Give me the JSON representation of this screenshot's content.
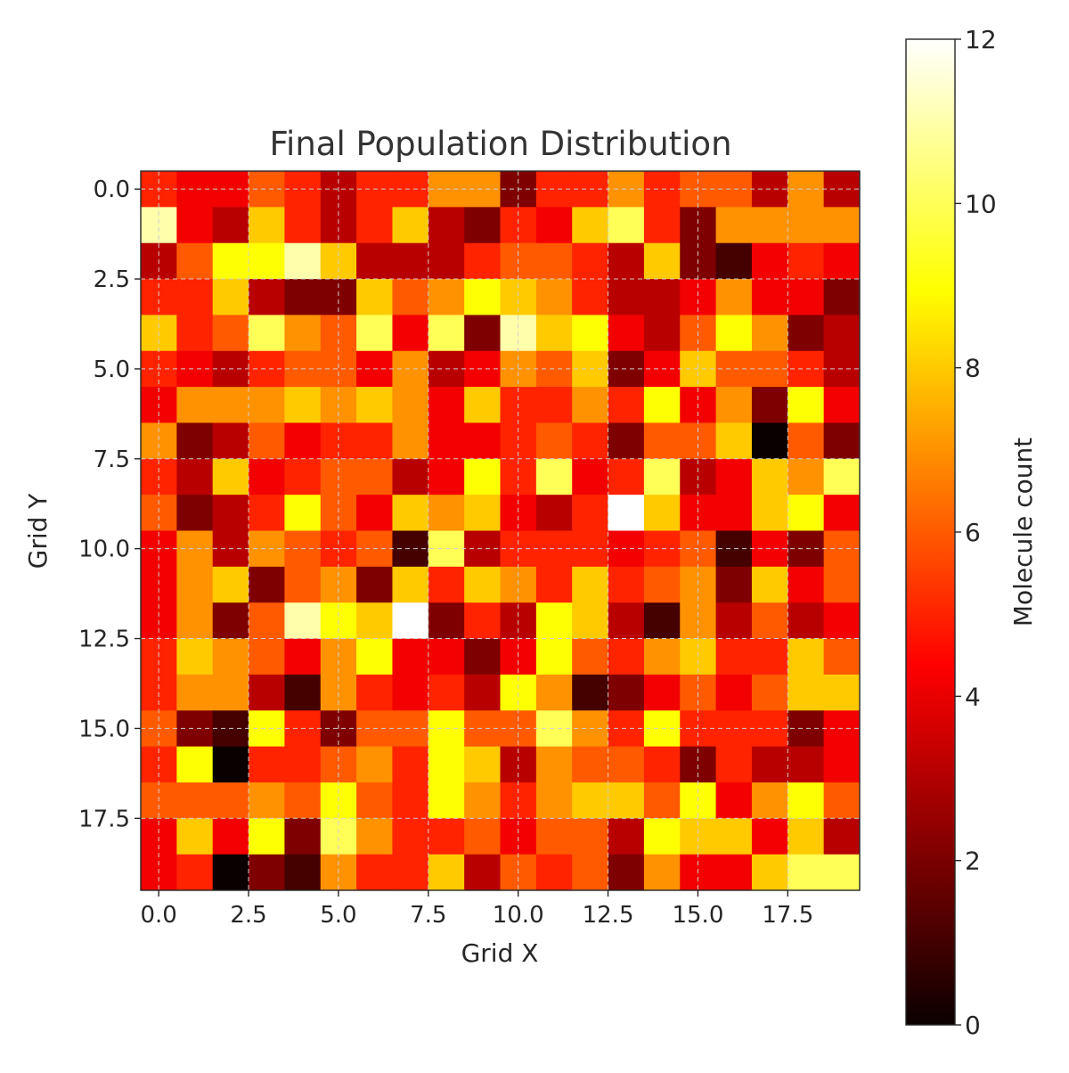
{
  "chart_data": {
    "type": "heatmap",
    "title": "Final Population Distribution",
    "xlabel": "Grid X",
    "ylabel": "Grid Y",
    "colormap": "hot",
    "colorbar_label": "Molecule count",
    "vmin": 0,
    "vmax": 12,
    "xlim": [
      -0.5,
      19.5
    ],
    "ylim": [
      19.5,
      -0.5
    ],
    "grid": true,
    "x_ticks": [
      "0.0",
      "2.5",
      "5.0",
      "7.5",
      "10.0",
      "12.5",
      "15.0",
      "17.5"
    ],
    "y_ticks": [
      "0.0",
      "2.5",
      "5.0",
      "7.5",
      "10.0",
      "12.5",
      "15.0",
      "17.5"
    ],
    "colorbar_ticks": [
      "0",
      "2",
      "4",
      "6",
      "8",
      "10",
      "12"
    ],
    "values": [
      [
        5,
        4,
        4,
        6,
        5,
        3,
        5,
        5,
        7,
        7,
        2,
        5,
        5,
        7,
        5,
        6,
        6,
        3,
        7,
        3
      ],
      [
        11,
        4,
        3,
        8,
        5,
        3,
        5,
        8,
        3,
        2,
        5,
        4,
        8,
        10,
        5,
        2,
        7,
        7,
        7,
        7
      ],
      [
        3,
        6,
        9,
        9,
        11,
        8,
        3,
        3,
        3,
        5,
        6,
        6,
        5,
        3,
        8,
        2,
        1,
        4,
        5,
        4
      ],
      [
        5,
        5,
        8,
        3,
        2,
        2,
        8,
        6,
        7,
        9,
        8,
        7,
        5,
        3,
        3,
        4,
        7,
        4,
        4,
        2
      ],
      [
        8,
        5,
        6,
        10,
        7,
        6,
        10,
        4,
        10,
        2,
        11,
        8,
        9,
        4,
        3,
        6,
        9,
        7,
        2,
        3
      ],
      [
        5,
        4,
        3,
        5,
        6,
        6,
        4,
        7,
        3,
        4,
        7,
        6,
        8,
        2,
        4,
        8,
        6,
        6,
        5,
        3
      ],
      [
        4,
        7,
        7,
        7,
        8,
        7,
        8,
        7,
        4,
        8,
        5,
        5,
        7,
        5,
        9,
        4,
        7,
        2,
        9,
        4
      ],
      [
        7,
        2,
        3,
        6,
        4,
        5,
        5,
        7,
        4,
        4,
        5,
        6,
        5,
        2,
        6,
        6,
        8,
        0,
        6,
        2
      ],
      [
        5,
        3,
        8,
        4,
        5,
        6,
        6,
        3,
        4,
        9,
        5,
        10,
        4,
        5,
        10,
        3,
        4,
        8,
        7,
        10
      ],
      [
        6,
        2,
        3,
        5,
        9,
        6,
        4,
        8,
        7,
        8,
        4,
        3,
        5,
        12,
        8,
        4,
        4,
        8,
        9,
        4
      ],
      [
        4,
        7,
        3,
        7,
        6,
        5,
        6,
        1,
        10,
        3,
        5,
        5,
        5,
        4,
        5,
        6,
        1,
        4,
        2,
        6
      ],
      [
        4,
        7,
        8,
        2,
        6,
        7,
        2,
        8,
        5,
        8,
        7,
        5,
        8,
        5,
        6,
        7,
        2,
        8,
        4,
        6
      ],
      [
        4,
        7,
        2,
        6,
        11,
        9,
        8,
        12,
        2,
        5,
        3,
        9,
        8,
        3,
        1,
        7,
        3,
        6,
        3,
        4
      ],
      [
        5,
        8,
        7,
        6,
        4,
        7,
        9,
        4,
        4,
        2,
        4,
        9,
        6,
        5,
        7,
        8,
        5,
        5,
        8,
        6
      ],
      [
        5,
        7,
        7,
        3,
        1,
        7,
        5,
        4,
        5,
        3,
        9,
        7,
        1,
        2,
        4,
        6,
        4,
        6,
        8,
        8
      ],
      [
        6,
        2,
        1,
        9,
        5,
        2,
        6,
        6,
        9,
        6,
        6,
        10,
        7,
        5,
        9,
        5,
        5,
        5,
        2,
        4
      ],
      [
        5,
        9,
        0,
        5,
        5,
        6,
        7,
        5,
        9,
        8,
        3,
        7,
        6,
        6,
        5,
        2,
        5,
        3,
        3,
        4
      ],
      [
        6,
        6,
        6,
        7,
        6,
        9,
        6,
        5,
        9,
        7,
        5,
        7,
        8,
        8,
        6,
        9,
        4,
        7,
        9,
        6
      ],
      [
        4,
        8,
        4,
        9,
        2,
        10,
        7,
        5,
        5,
        6,
        4,
        6,
        6,
        3,
        9,
        8,
        8,
        4,
        8,
        3
      ],
      [
        4,
        5,
        0,
        2,
        1,
        7,
        5,
        5,
        8,
        3,
        6,
        5,
        6,
        2,
        7,
        4,
        4,
        8,
        10,
        10
      ]
    ]
  }
}
